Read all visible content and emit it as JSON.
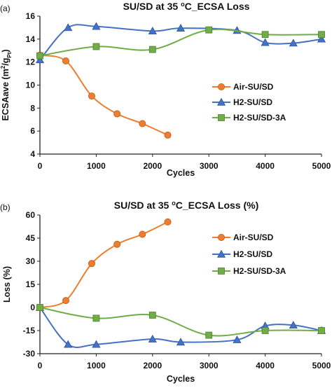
{
  "chart_data": [
    {
      "type": "line",
      "panel_label": "(a)",
      "title_main": "SU/SD at 35 ",
      "title_sup": "o",
      "title_rest": "C_ECSA Loss",
      "xlabel": "Cycles",
      "ylabel_main": "ECSAave (m",
      "ylabel_sup": "2",
      "ylabel_mid": "/g",
      "ylabel_sub": "Pt",
      "ylabel_end": ")",
      "xlim": [
        0,
        5000
      ],
      "ylim": [
        4,
        16
      ],
      "xticks": [
        0,
        1000,
        2000,
        3000,
        4000,
        5000
      ],
      "yticks": [
        4,
        6,
        8,
        10,
        12,
        14,
        16
      ],
      "xtick_labels": [
        "0",
        "1000",
        "2000",
        "3000",
        "4000",
        "5000"
      ],
      "ytick_labels": [
        "4",
        "6",
        "8",
        "10",
        "12",
        "14",
        "16"
      ],
      "grid": false,
      "legend_position": "right",
      "series": [
        {
          "name": "Air-SU/SD",
          "marker": "circle",
          "color": "#ED7D31",
          "x": [
            0,
            460,
            920,
            1370,
            1820,
            2270
          ],
          "y": [
            12.6,
            12.1,
            9.05,
            7.5,
            6.65,
            5.65
          ]
        },
        {
          "name": "H2-SU/SD",
          "marker": "triangle",
          "color": "#4472C4",
          "x": [
            0,
            500,
            1000,
            2000,
            2500,
            3500,
            4000,
            4500,
            5000
          ],
          "y": [
            12.2,
            15.0,
            15.1,
            14.7,
            14.95,
            14.75,
            13.7,
            13.65,
            14.0
          ]
        },
        {
          "name": "H2-SU/SD-3A",
          "marker": "square",
          "color": "#70AD47",
          "x": [
            0,
            1000,
            2000,
            3000,
            4000,
            5000
          ],
          "y": [
            12.55,
            13.35,
            13.1,
            14.8,
            14.4,
            14.4
          ]
        }
      ]
    },
    {
      "type": "line",
      "panel_label": "(b)",
      "title_main": "SU/SD at 35 ",
      "title_sup": "o",
      "title_rest": "C_ECSA Loss (%)",
      "xlabel": "Cycles",
      "ylabel_main": "Loss (%)",
      "xlim": [
        0,
        5000
      ],
      "ylim": [
        -30,
        60
      ],
      "xticks": [
        0,
        1000,
        2000,
        3000,
        4000,
        5000
      ],
      "yticks": [
        -30,
        -15,
        0,
        15,
        30,
        45,
        60
      ],
      "xtick_labels": [
        "0",
        "1000",
        "2000",
        "3000",
        "4000",
        "5000"
      ],
      "ytick_labels": [
        "-30",
        "-15",
        "0",
        "15",
        "30",
        "45",
        "60"
      ],
      "grid": false,
      "legend_position": "right",
      "series": [
        {
          "name": "Air-SU/SD",
          "marker": "circle",
          "color": "#ED7D31",
          "x": [
            0,
            460,
            920,
            1370,
            1820,
            2270
          ],
          "y": [
            0,
            4.5,
            28.5,
            41,
            47.5,
            55.5
          ]
        },
        {
          "name": "H2-SU/SD",
          "marker": "triangle",
          "color": "#4472C4",
          "x": [
            0,
            500,
            1000,
            2000,
            2500,
            3500,
            4000,
            4500,
            5000
          ],
          "y": [
            0,
            -24,
            -24,
            -20.5,
            -22.5,
            -21,
            -12,
            -11.5,
            -15
          ]
        },
        {
          "name": "H2-SU/SD-3A",
          "marker": "square",
          "color": "#70AD47",
          "x": [
            0,
            1000,
            2000,
            3000,
            4000,
            5000
          ],
          "y": [
            0,
            -7,
            -5,
            -18,
            -15,
            -15
          ]
        }
      ]
    }
  ]
}
